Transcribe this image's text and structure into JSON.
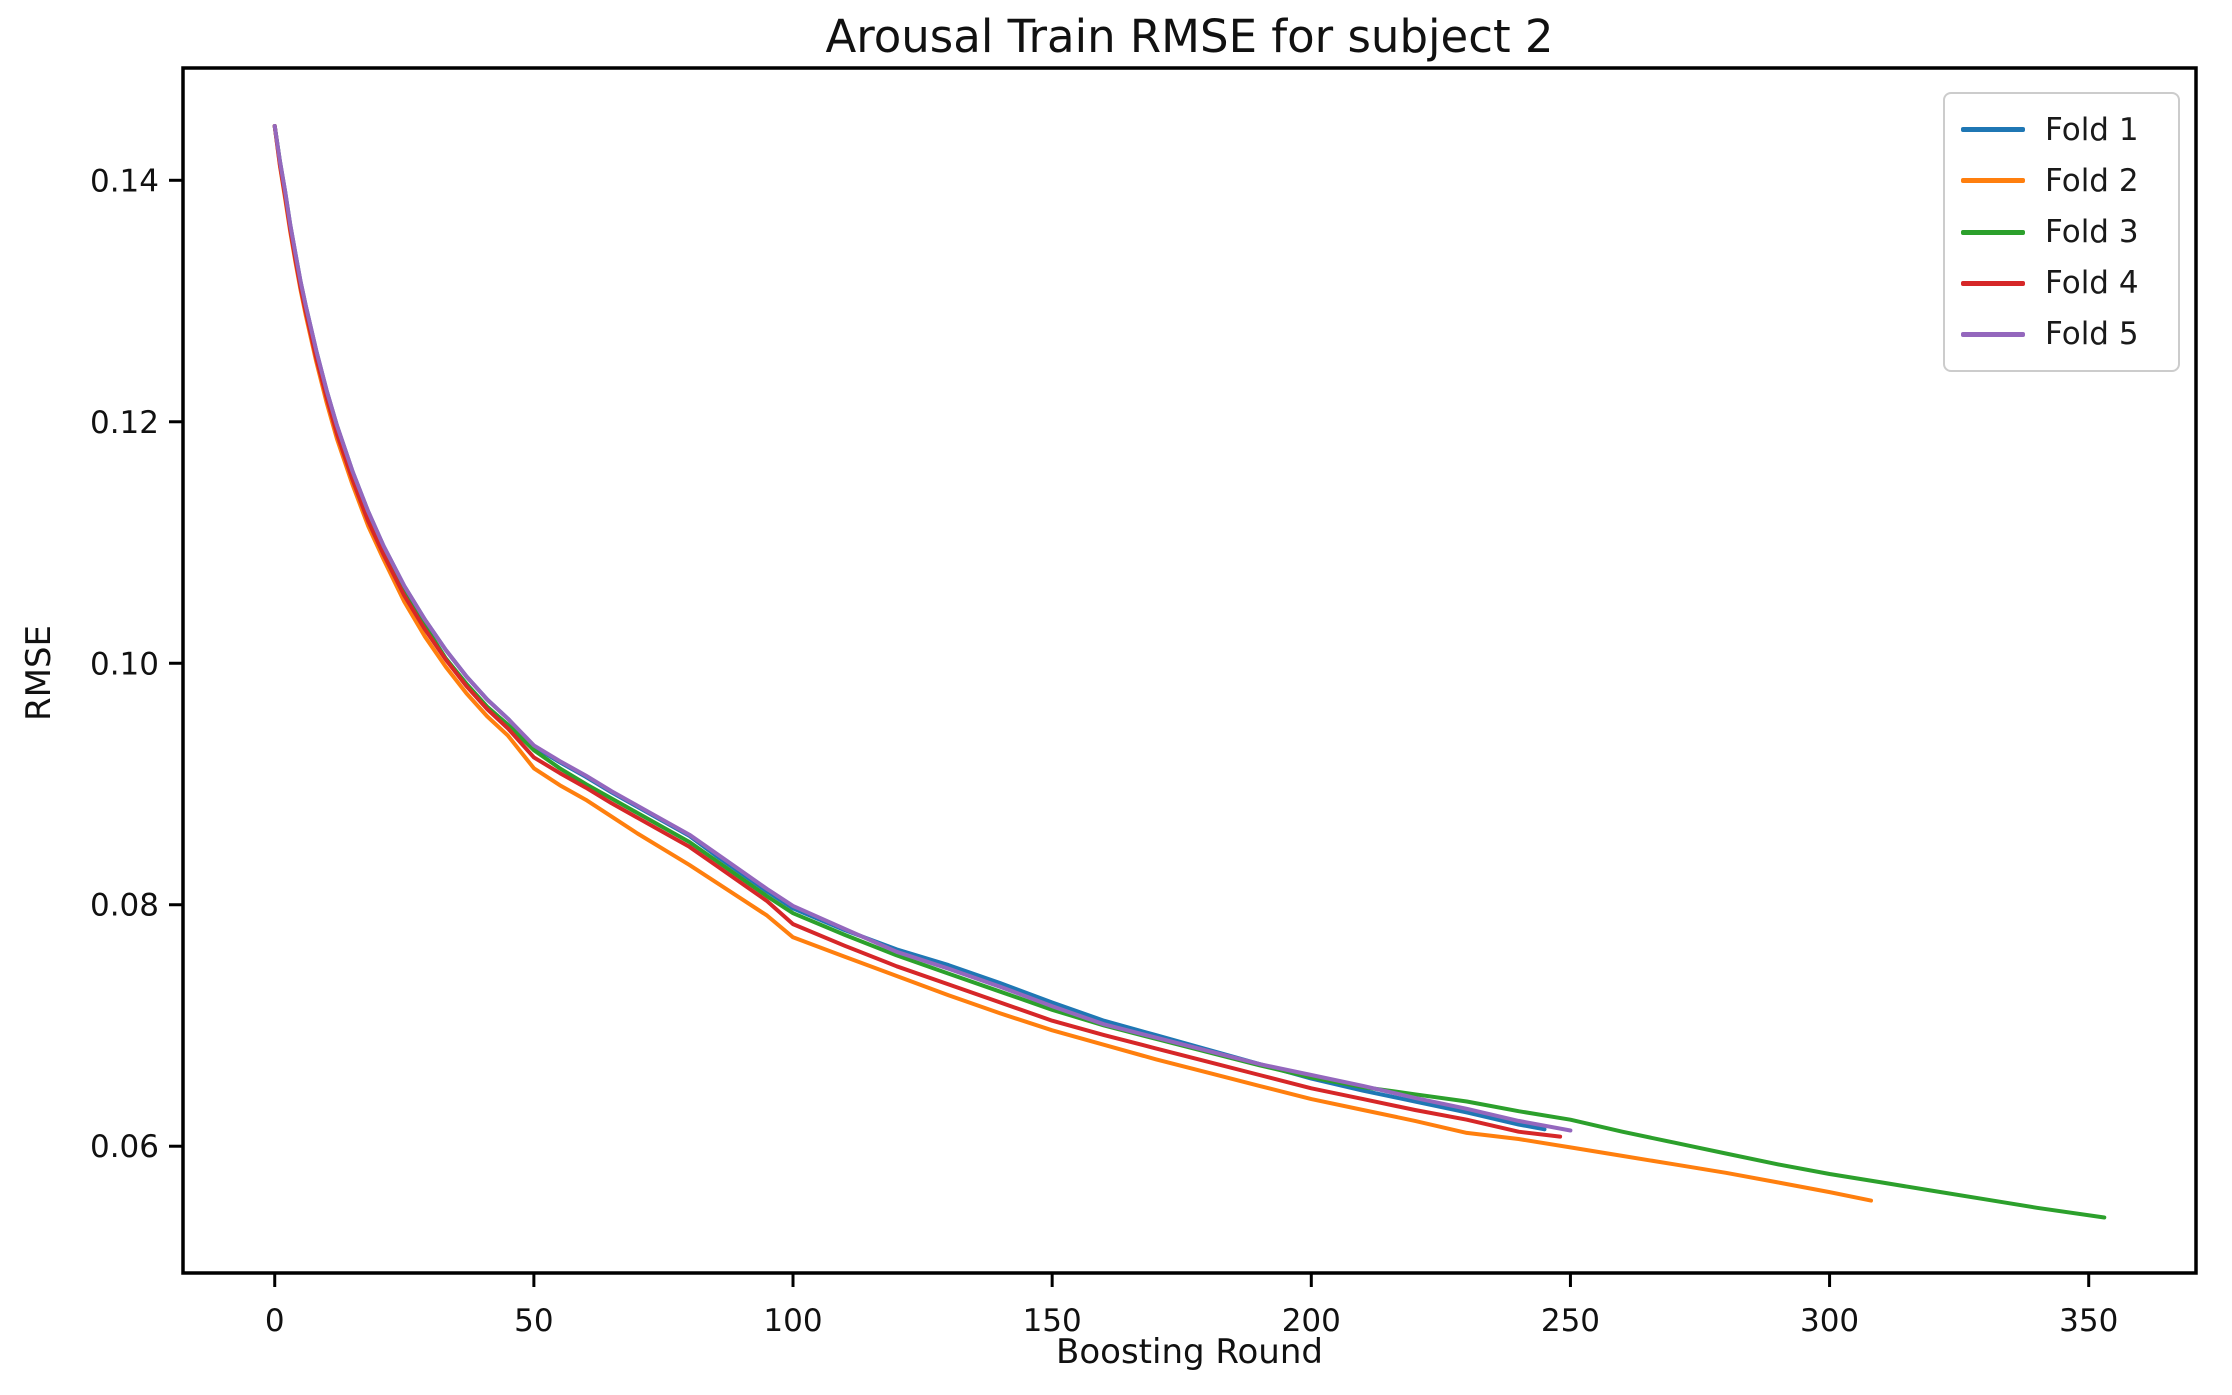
{
  "chart_data": {
    "type": "line",
    "title": "Arousal Train RMSE for subject 2",
    "xlabel": "Boosting Round",
    "ylabel": "RMSE",
    "xlim": [
      -17.7,
      370.7
    ],
    "ylim": [
      0.0495,
      0.1493
    ],
    "xticks": [
      0,
      50,
      100,
      150,
      200,
      250,
      300,
      350
    ],
    "xtick_labels": [
      "0",
      "50",
      "100",
      "150",
      "200",
      "250",
      "300",
      "350"
    ],
    "yticks": [
      0.06,
      0.08,
      0.1,
      0.12,
      0.14
    ],
    "ytick_labels": [
      "0.06",
      "0.08",
      "0.10",
      "0.12",
      "0.14"
    ],
    "grid": false,
    "legend_position": "upper right",
    "axis_color": "#000000",
    "series": [
      {
        "name": "Fold 1",
        "color": "#1f77b4",
        "x": [
          0,
          1,
          2,
          3,
          4,
          5,
          6,
          8,
          10,
          12,
          15,
          18,
          21,
          25,
          29,
          33,
          37,
          41,
          45,
          50,
          55,
          60,
          65,
          70,
          75,
          80,
          85,
          90,
          95,
          100,
          110,
          120,
          130,
          140,
          150,
          160,
          170,
          180,
          190,
          200,
          210,
          220,
          230,
          240,
          245
        ],
        "y": [
          0.1445,
          0.1416,
          0.1391,
          0.1363,
          0.1339,
          0.1316,
          0.1296,
          0.1259,
          0.1226,
          0.1197,
          0.1159,
          0.1126,
          0.1097,
          0.1064,
          0.1036,
          0.1011,
          0.0989,
          0.097,
          0.0954,
          0.0931,
          0.0918,
          0.0906,
          0.0893,
          0.0881,
          0.0869,
          0.0857,
          0.0841,
          0.0826,
          0.0811,
          0.0797,
          0.0779,
          0.0763,
          0.075,
          0.0735,
          0.0719,
          0.0704,
          0.0692,
          0.068,
          0.0668,
          0.0656,
          0.0646,
          0.0637,
          0.0628,
          0.0618,
          0.0614
        ]
      },
      {
        "name": "Fold 2",
        "color": "#ff7f0e",
        "x": [
          0,
          1,
          2,
          3,
          4,
          5,
          6,
          8,
          10,
          12,
          15,
          18,
          21,
          25,
          29,
          33,
          37,
          41,
          45,
          50,
          55,
          60,
          65,
          70,
          75,
          80,
          85,
          90,
          95,
          100,
          110,
          120,
          130,
          140,
          150,
          160,
          170,
          180,
          190,
          200,
          210,
          220,
          230,
          240,
          250,
          260,
          270,
          280,
          290,
          300,
          308
        ],
        "y": [
          0.1445,
          0.1412,
          0.1385,
          0.1357,
          0.1332,
          0.1309,
          0.1288,
          0.125,
          0.1216,
          0.1186,
          0.1148,
          0.1114,
          0.1086,
          0.1051,
          0.1022,
          0.0997,
          0.0975,
          0.0956,
          0.094,
          0.0913,
          0.0899,
          0.0887,
          0.0873,
          0.0859,
          0.0846,
          0.0833,
          0.0819,
          0.0805,
          0.0791,
          0.0773,
          0.0757,
          0.0741,
          0.0725,
          0.071,
          0.0696,
          0.0684,
          0.0672,
          0.0661,
          0.065,
          0.0639,
          0.063,
          0.0621,
          0.0611,
          0.0606,
          0.0599,
          0.0592,
          0.0585,
          0.0578,
          0.057,
          0.0562,
          0.0555
        ]
      },
      {
        "name": "Fold 3",
        "color": "#2ca02c",
        "x": [
          0,
          1,
          2,
          3,
          4,
          5,
          6,
          8,
          10,
          12,
          15,
          18,
          21,
          25,
          29,
          33,
          37,
          41,
          45,
          50,
          55,
          60,
          65,
          70,
          75,
          80,
          85,
          90,
          95,
          100,
          110,
          120,
          130,
          140,
          150,
          160,
          170,
          180,
          190,
          200,
          210,
          220,
          230,
          240,
          250,
          260,
          270,
          280,
          290,
          300,
          310,
          320,
          330,
          340,
          353
        ],
        "y": [
          0.1445,
          0.1415,
          0.1389,
          0.1361,
          0.1337,
          0.1314,
          0.1294,
          0.1257,
          0.1224,
          0.1194,
          0.1156,
          0.1122,
          0.1093,
          0.1059,
          0.1031,
          0.1004,
          0.0983,
          0.0964,
          0.0949,
          0.0928,
          0.0913,
          0.09,
          0.0888,
          0.0876,
          0.0864,
          0.0852,
          0.0837,
          0.0822,
          0.0807,
          0.0793,
          0.0775,
          0.0758,
          0.0743,
          0.0728,
          0.0713,
          0.07,
          0.0689,
          0.0678,
          0.0667,
          0.0657,
          0.0649,
          0.0643,
          0.0637,
          0.0629,
          0.0622,
          0.0612,
          0.0603,
          0.0594,
          0.0585,
          0.0577,
          0.057,
          0.0563,
          0.0556,
          0.0549,
          0.0541
        ]
      },
      {
        "name": "Fold 4",
        "color": "#d62728",
        "x": [
          0,
          1,
          2,
          3,
          4,
          5,
          6,
          8,
          10,
          12,
          15,
          18,
          21,
          25,
          29,
          33,
          37,
          41,
          45,
          50,
          55,
          60,
          65,
          70,
          75,
          80,
          85,
          90,
          95,
          100,
          110,
          120,
          130,
          140,
          150,
          160,
          170,
          180,
          190,
          200,
          210,
          220,
          230,
          240,
          248
        ],
        "y": [
          0.1445,
          0.1413,
          0.1387,
          0.1359,
          0.1334,
          0.1311,
          0.1291,
          0.1253,
          0.122,
          0.119,
          0.1152,
          0.1118,
          0.109,
          0.1056,
          0.1028,
          0.1003,
          0.0981,
          0.0962,
          0.0946,
          0.0922,
          0.0909,
          0.0897,
          0.0884,
          0.0872,
          0.086,
          0.0848,
          0.0833,
          0.0818,
          0.0803,
          0.0784,
          0.0766,
          0.0749,
          0.0734,
          0.0719,
          0.0704,
          0.0692,
          0.0681,
          0.067,
          0.0659,
          0.0648,
          0.0639,
          0.063,
          0.0622,
          0.0612,
          0.0608
        ]
      },
      {
        "name": "Fold 5",
        "color": "#9467bd",
        "x": [
          0,
          1,
          2,
          3,
          4,
          5,
          6,
          8,
          10,
          12,
          15,
          18,
          21,
          25,
          29,
          33,
          37,
          41,
          45,
          50,
          55,
          60,
          65,
          70,
          75,
          80,
          85,
          90,
          95,
          100,
          110,
          120,
          130,
          140,
          150,
          160,
          170,
          180,
          190,
          200,
          210,
          220,
          230,
          240,
          250
        ],
        "y": [
          0.1445,
          0.1416,
          0.1391,
          0.1363,
          0.1339,
          0.1316,
          0.1296,
          0.1259,
          0.1226,
          0.1197,
          0.1159,
          0.1126,
          0.1097,
          0.1064,
          0.1036,
          0.1011,
          0.0989,
          0.097,
          0.0954,
          0.0932,
          0.0919,
          0.0907,
          0.0894,
          0.0882,
          0.087,
          0.0858,
          0.0843,
          0.0828,
          0.0813,
          0.0799,
          0.078,
          0.0761,
          0.0747,
          0.0732,
          0.0716,
          0.0701,
          0.069,
          0.0679,
          0.0668,
          0.0659,
          0.065,
          0.064,
          0.0631,
          0.0621,
          0.0613
        ]
      }
    ]
  }
}
